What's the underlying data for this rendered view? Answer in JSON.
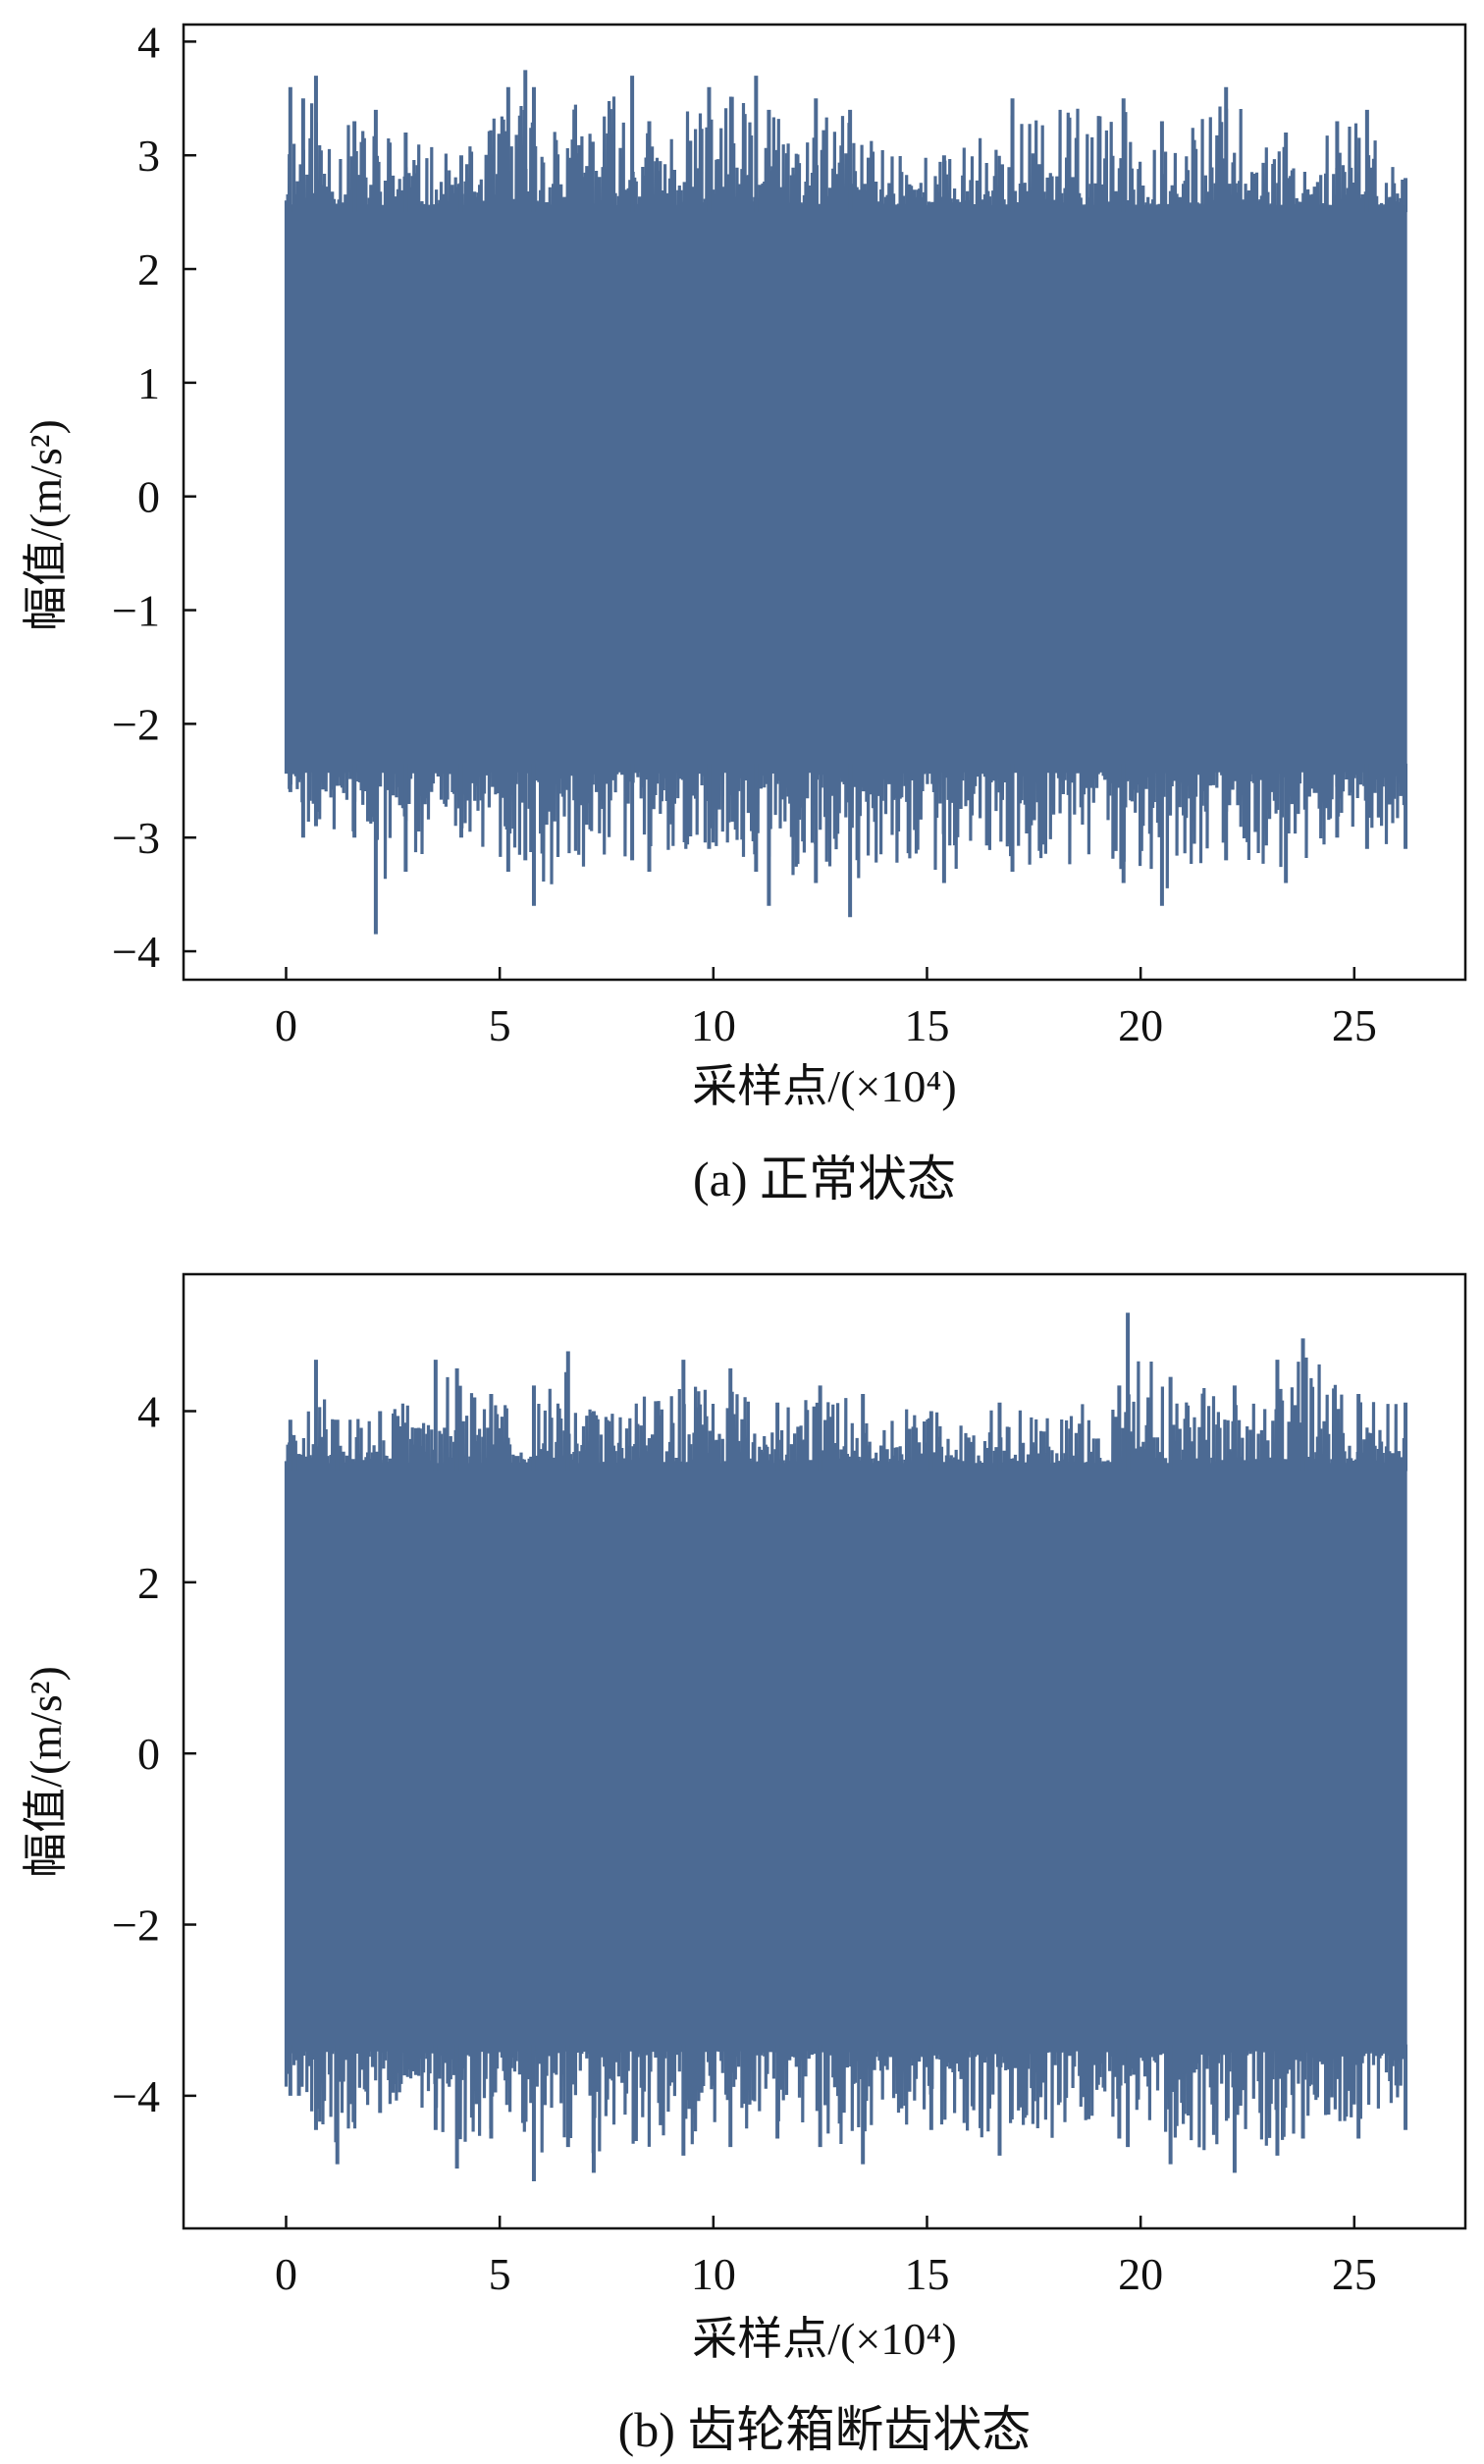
{
  "chart_data": [
    {
      "type": "line",
      "caption": "(a) 正常状态",
      "xlabel": "采样点/(×10⁴)",
      "ylabel": "幅值/(m/s²)",
      "xlim": [
        -2.4,
        27.6
      ],
      "ylim": [
        -4.25,
        4.15
      ],
      "xticks": [
        0,
        5,
        10,
        15,
        20,
        25
      ],
      "yticks": [
        -4,
        -3,
        -2,
        -1,
        0,
        1,
        2,
        3,
        4
      ],
      "ytick_labels": [
        "−4",
        "−3",
        "−2",
        "−1",
        "0",
        "1",
        "2",
        "3",
        "4"
      ],
      "grid": false,
      "series": [
        {
          "color": "#4c6a93",
          "x_range": [
            0,
            26.2
          ],
          "band_upper": 2.5,
          "band_lower": -2.35,
          "x": [
            0.1,
            0.4,
            0.7,
            1.6,
            2.1,
            2.8,
            4.1,
            5.2,
            5.6,
            5.8,
            8.1,
            8.5,
            9.9,
            11.0,
            11.3,
            12.4,
            13.2,
            15.4,
            17.0,
            19.6,
            20.5,
            22.0,
            23.4,
            24.6,
            25.3,
            26.2
          ],
          "y_max": [
            3.6,
            3.5,
            3.7,
            3.3,
            3.4,
            3.2,
            3.0,
            3.6,
            3.75,
            3.6,
            3.7,
            3.3,
            3.6,
            3.7,
            3.4,
            3.5,
            3.4,
            3.0,
            3.5,
            3.5,
            3.3,
            3.6,
            3.2,
            3.3,
            3.4,
            2.8
          ],
          "y_min": [
            -2.6,
            -3.0,
            -2.9,
            -3.0,
            -3.85,
            -3.3,
            -3.0,
            -3.3,
            -3.2,
            -3.6,
            -3.2,
            -3.3,
            -3.1,
            -3.3,
            -3.6,
            -3.4,
            -3.7,
            -3.4,
            -3.3,
            -3.4,
            -3.6,
            -3.2,
            -3.4,
            -3.0,
            -3.1,
            -3.1
          ]
        }
      ]
    },
    {
      "type": "line",
      "caption": "(b) 齿轮箱断齿状态",
      "xlabel": "采样点/(×10⁴)",
      "ylabel": "幅值/(m/s²)",
      "xlim": [
        -2.4,
        27.6
      ],
      "ylim": [
        -5.55,
        5.6
      ],
      "xticks": [
        0,
        5,
        10,
        15,
        20,
        25
      ],
      "yticks": [
        -4,
        -2,
        0,
        2,
        4
      ],
      "ytick_labels": [
        "−4",
        "−2",
        "0",
        "2",
        "4"
      ],
      "grid": false,
      "series": [
        {
          "color": "#4c6a93",
          "x_range": [
            0,
            26.2
          ],
          "band_upper": 3.3,
          "band_lower": -3.4,
          "x": [
            0.1,
            0.3,
            0.7,
            1.2,
            2.2,
            3.5,
            4.0,
            4.8,
            5.8,
            6.6,
            7.2,
            9.3,
            10.4,
            11.5,
            12.5,
            13.5,
            15.1,
            16.7,
            19.5,
            19.7,
            20.7,
            22.2,
            23.2,
            23.8,
            25.1,
            26.2
          ],
          "y_max": [
            3.9,
            3.5,
            4.6,
            3.9,
            4.0,
            4.6,
            4.5,
            4.2,
            4.3,
            4.7,
            4.0,
            4.6,
            4.5,
            4.1,
            4.3,
            4.2,
            4.0,
            4.1,
            4.3,
            5.15,
            4.4,
            4.3,
            4.6,
            4.85,
            4.2,
            4.1
          ],
          "y_min": [
            -4.0,
            -4.0,
            -4.4,
            -4.8,
            -4.2,
            -4.4,
            -4.85,
            -4.5,
            -5.0,
            -4.6,
            -4.9,
            -4.7,
            -4.6,
            -4.5,
            -4.6,
            -4.8,
            -4.4,
            -4.7,
            -4.5,
            -4.6,
            -4.8,
            -4.9,
            -4.7,
            -4.5,
            -4.5,
            -4.4
          ]
        }
      ]
    }
  ]
}
